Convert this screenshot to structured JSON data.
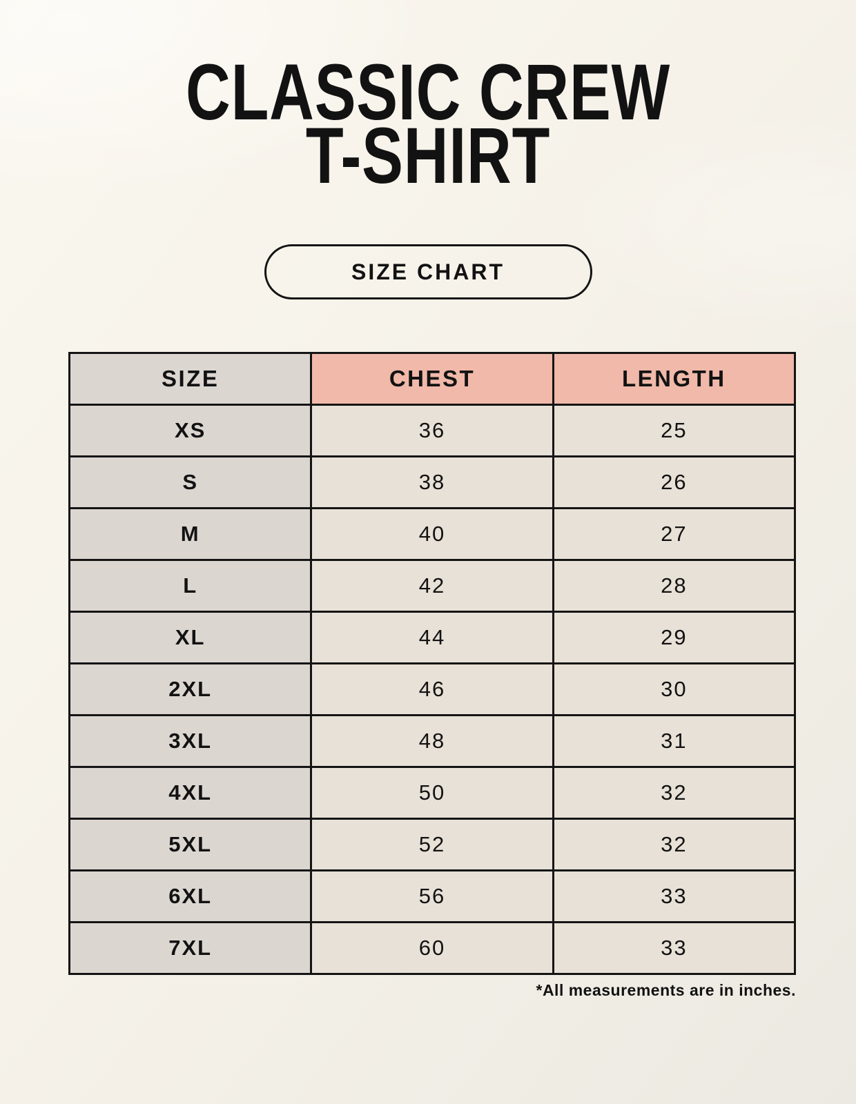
{
  "page": {
    "title_line1": "CLASSIC CREW",
    "title_line2": "T-SHIRT",
    "size_chart_button_label": "SIZE CHART",
    "footnote": "*All measurements are in inches."
  },
  "table": {
    "columns": [
      "SIZE",
      "CHEST",
      "LENGTH"
    ],
    "rows": [
      {
        "size": "XS",
        "chest": "36",
        "length": "25"
      },
      {
        "size": "S",
        "chest": "38",
        "length": "26"
      },
      {
        "size": "M",
        "chest": "40",
        "length": "27"
      },
      {
        "size": "L",
        "chest": "42",
        "length": "28"
      },
      {
        "size": "XL",
        "chest": "44",
        "length": "29"
      },
      {
        "size": "2XL",
        "chest": "46",
        "length": "30"
      },
      {
        "size": "3XL",
        "chest": "48",
        "length": "31"
      },
      {
        "size": "4XL",
        "chest": "50",
        "length": "32"
      },
      {
        "size": "5XL",
        "chest": "52",
        "length": "32"
      },
      {
        "size": "6XL",
        "chest": "56",
        "length": "33"
      },
      {
        "size": "7XL",
        "chest": "60",
        "length": "33"
      }
    ]
  },
  "colors": {
    "background": "#f6f2e9",
    "header_accent": "#f0b9a9",
    "size_column": "#dcd6d1",
    "cell_background": "#e8e1d7",
    "border": "#141414",
    "text": "#121212"
  }
}
